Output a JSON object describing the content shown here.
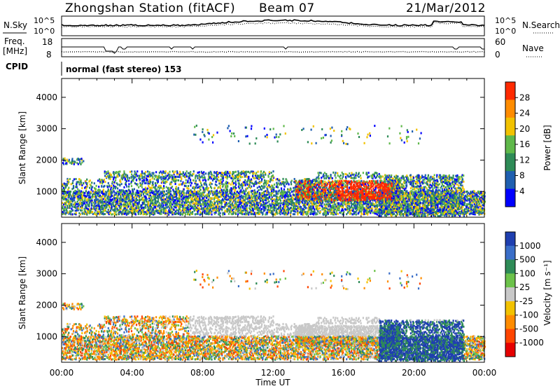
{
  "header": {
    "station": "Zhongshan Station (fitACF)",
    "beam": "Beam 07",
    "date": "21/Mar/2012"
  },
  "nsky_panel": {
    "left_label": "N.Sky",
    "right_label": "N.Search",
    "left_ticks": [
      "10^5",
      "10^0"
    ],
    "right_ticks": [
      "10^5",
      "10^0"
    ]
  },
  "freq_panel": {
    "left_label_1": "Freq.",
    "left_label_2": "[MHz]",
    "left_ticks": [
      "18",
      "8"
    ],
    "right_label": "Nave",
    "right_ticks": [
      "60",
      "0"
    ]
  },
  "cpid": {
    "label": "CPID",
    "mode_text": "normal (fast stereo) 153"
  },
  "chart_data": [
    {
      "type": "heatmap",
      "panel": "power",
      "ylabel": "Slant Range [km]",
      "xlabel": "",
      "y_ticks": [
        "1000",
        "2000",
        "3000",
        "4000"
      ],
      "ylim": [
        180,
        4600
      ],
      "colorbar_label": "Power [dB]",
      "colorbar_ticks": [
        "4",
        "8",
        "12",
        "16",
        "20",
        "24",
        "28"
      ],
      "colorbar_colors": [
        "#0000ff",
        "#1f5fb0",
        "#2e8b57",
        "#5fb84a",
        "#f2c200",
        "#ff8c00",
        "#ff2a00"
      ]
    },
    {
      "type": "heatmap",
      "panel": "velocity",
      "ylabel": "Slant Range [km]",
      "xlabel": "Time UT",
      "x_ticks": [
        "00:00",
        "04:00",
        "08:00",
        "12:00",
        "16:00",
        "20:00",
        "00:00"
      ],
      "y_ticks": [
        "1000",
        "2000",
        "3000",
        "4000"
      ],
      "ylim": [
        180,
        4600
      ],
      "colorbar_label": "Velocity [m s⁻¹]",
      "colorbar_ticks": [
        "1000",
        "500",
        "100",
        "25",
        "-25",
        "-100",
        "-500",
        "-1000"
      ],
      "colorbar_colors": [
        "#1f3fb0",
        "#3a6ec8",
        "#2e8b57",
        "#6cc24a",
        "#c8c8c8",
        "#f2c200",
        "#ff8c00",
        "#ff4500",
        "#e60000"
      ]
    }
  ]
}
